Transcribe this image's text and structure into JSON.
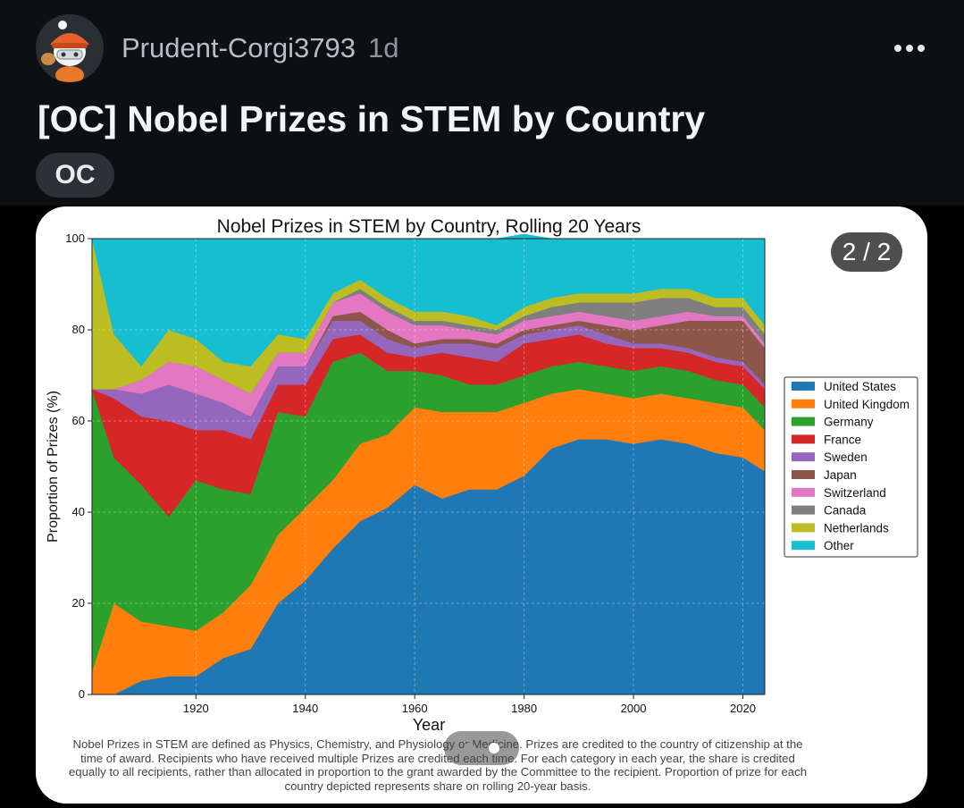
{
  "post": {
    "username": "Prudent-Corgi3793",
    "age": "1d",
    "title": "[OC] Nobel Prizes in STEM by Country",
    "flair": "OC",
    "more_icon": "more-horizontal-icon"
  },
  "gallery": {
    "counter": "2 / 2",
    "footnote": "Nobel Prizes in STEM are defined as Physics, Chemistry, and Physiology or Medicine. Prizes are credited to the country of citizenship at the time of award. Recipients who have received multiple Prizes are credited each time. For each category in each year, the share is credited equally to all recipients, rather than allocated in proportion to the grant awarded by the Committee to the recipient. Proportion of prize for each country depicted represents share on rolling 20-year basis."
  },
  "colors": {
    "background": "#000000",
    "header_bg": "#0d1013",
    "flair_bg": "#2d3136"
  },
  "chart_data": {
    "type": "area",
    "title": "Nobel Prizes in STEM by Country, Rolling 20 Years",
    "xlabel": "Year",
    "ylabel": "Proportion of Prizes (%)",
    "xlim": [
      1901,
      2024
    ],
    "ylim": [
      0,
      100
    ],
    "xticks": [
      1920,
      1940,
      1960,
      1980,
      2000,
      2020
    ],
    "yticks": [
      0,
      20,
      40,
      60,
      80,
      100
    ],
    "legend_position": "right",
    "stacked": true,
    "x": [
      1901,
      1905,
      1910,
      1915,
      1920,
      1925,
      1930,
      1935,
      1940,
      1945,
      1950,
      1955,
      1960,
      1965,
      1970,
      1975,
      1980,
      1985,
      1990,
      1995,
      2000,
      2005,
      2010,
      2015,
      2020,
      2024
    ],
    "series": [
      {
        "name": "United States",
        "color": "#1f77b4",
        "values": [
          0,
          0,
          3,
          4,
          4,
          8,
          10,
          20,
          25,
          32,
          38,
          41,
          46,
          43,
          45,
          45,
          48,
          54,
          56,
          56,
          55,
          56,
          55,
          53,
          52,
          49
        ]
      },
      {
        "name": "United Kingdom",
        "color": "#ff7f0e",
        "values": [
          5,
          20,
          13,
          11,
          10,
          10,
          14,
          15,
          16,
          15,
          17,
          16,
          17,
          19,
          17,
          17,
          16,
          12,
          11,
          10,
          10,
          10,
          10,
          11,
          11,
          9
        ]
      },
      {
        "name": "Germany",
        "color": "#2ca02c",
        "values": [
          62,
          32,
          30,
          24,
          33,
          27,
          20,
          27,
          20,
          26,
          20,
          14,
          8,
          8,
          6,
          6,
          6,
          6,
          6,
          6,
          6,
          6,
          6,
          5,
          5,
          5
        ]
      },
      {
        "name": "France",
        "color": "#d62728",
        "values": [
          0,
          13,
          15,
          21,
          11,
          13,
          12,
          6,
          7,
          5,
          4,
          4,
          3,
          5,
          6,
          5,
          7,
          6,
          6,
          5,
          5,
          4,
          4,
          4,
          4,
          4
        ]
      },
      {
        "name": "Sweden",
        "color": "#9467bd",
        "values": [
          0,
          2,
          5,
          8,
          8,
          6,
          5,
          4,
          4,
          4,
          3,
          3,
          2,
          2,
          3,
          3,
          2,
          2,
          2,
          2,
          1,
          1,
          1,
          1,
          1,
          1
        ]
      },
      {
        "name": "Japan",
        "color": "#8c564b",
        "values": [
          0,
          0,
          0,
          0,
          0,
          0,
          0,
          0,
          0,
          1,
          2,
          2,
          1,
          1,
          1,
          1,
          1,
          1,
          1,
          2,
          3,
          4,
          6,
          8,
          9,
          8
        ]
      },
      {
        "name": "Switzerland",
        "color": "#e377c2",
        "values": [
          0,
          0,
          3,
          5,
          6,
          5,
          5,
          3,
          3,
          3,
          4,
          4,
          4,
          3,
          2,
          2,
          2,
          2,
          2,
          2,
          2,
          2,
          2,
          1,
          1,
          1
        ]
      },
      {
        "name": "Canada",
        "color": "#7f7f7f",
        "values": [
          0,
          0,
          0,
          0,
          0,
          0,
          0,
          0,
          0,
          0,
          1,
          1,
          1,
          1,
          1,
          1,
          1,
          2,
          2,
          3,
          4,
          4,
          3,
          2,
          2,
          2
        ]
      },
      {
        "name": "Netherlands",
        "color": "#bcbd22",
        "values": [
          33,
          12,
          3,
          7,
          6,
          4,
          6,
          4,
          3,
          2,
          2,
          2,
          2,
          2,
          2,
          1,
          2,
          2,
          2,
          2,
          2,
          2,
          2,
          2,
          2,
          2
        ]
      },
      {
        "name": "Other",
        "color": "#17becf",
        "values": [
          0,
          21,
          28,
          20,
          22,
          27,
          28,
          21,
          22,
          12,
          9,
          13,
          16,
          16,
          17,
          19,
          16,
          13,
          12,
          12,
          12,
          11,
          11,
          13,
          13,
          19
        ]
      }
    ]
  }
}
